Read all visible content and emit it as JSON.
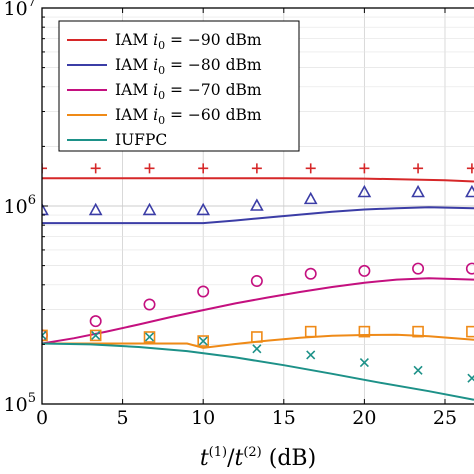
{
  "chart_data": {
    "type": "line",
    "xlabel": "t(1)/t(2) (dB)",
    "xlabel_parts": {
      "t": "t",
      "sup1": "(1)",
      "slash": "/",
      "sup2": "(2)",
      "unit": " (dB)"
    },
    "yscale": "log",
    "xlim": [
      0,
      26.8
    ],
    "ylim": [
      100000,
      10000000
    ],
    "x_ticks": [
      0,
      5,
      10,
      15,
      20,
      25
    ],
    "x_tick_labels": [
      "0",
      "5",
      "10",
      "15",
      "20",
      "25"
    ],
    "y_major_ticks": [
      100000,
      1000000,
      10000000
    ],
    "y_tick_labels": [
      {
        "base": "10",
        "exp": "5"
      },
      {
        "base": "10",
        "exp": "6"
      },
      {
        "base": "10",
        "exp": "7"
      }
    ],
    "grid": true,
    "legend_placement": "top-left",
    "series": [
      {
        "name": "IAM i0 = −90 dBm",
        "color": "#d62728",
        "marker": "plus",
        "line_x": [
          0,
          5,
          10,
          15,
          20,
          25,
          26.8
        ],
        "line_y": [
          1380000,
          1380000,
          1380000,
          1380000,
          1375000,
          1350000,
          1330000
        ],
        "marker_x": [
          0,
          3.33,
          6.67,
          10,
          13.33,
          16.67,
          20,
          23.33,
          26.67
        ],
        "marker_y": [
          1550000,
          1550000,
          1550000,
          1550000,
          1550000,
          1550000,
          1550000,
          1550000,
          1550000
        ]
      },
      {
        "name": "IAM i0 = −80 dBm",
        "color": "#3b3da6",
        "marker": "triangle",
        "line_x": [
          0,
          5,
          10,
          12,
          14,
          16,
          18,
          20,
          22,
          24,
          26.8
        ],
        "line_y": [
          820000,
          820000,
          820000,
          845000,
          875000,
          905000,
          935000,
          960000,
          975000,
          985000,
          975000
        ],
        "marker_x": [
          0,
          3.33,
          6.67,
          10,
          13.33,
          16.67,
          20,
          23.33,
          26.67
        ],
        "marker_y": [
          950000,
          950000,
          950000,
          950000,
          1000000,
          1080000,
          1170000,
          1170000,
          1170000
        ]
      },
      {
        "name": "IAM i0 = −70 dBm",
        "color": "#c4107f",
        "marker": "circle",
        "line_x": [
          0,
          2,
          4,
          6,
          8,
          10,
          12,
          14,
          16,
          18,
          20,
          22,
          24,
          26.8
        ],
        "line_y": [
          202000,
          215000,
          232000,
          252000,
          275000,
          298000,
          322000,
          345000,
          368000,
          390000,
          410000,
          425000,
          432000,
          425000
        ],
        "marker_x": [
          0,
          3.33,
          6.67,
          10,
          13.33,
          16.67,
          20,
          23.33,
          26.67
        ],
        "marker_y": [
          222000,
          262000,
          318000,
          370000,
          418000,
          455000,
          470000,
          483000,
          483000
        ]
      },
      {
        "name": "IAM i0 = −60 dBm",
        "color": "#ef8a17",
        "marker": "square",
        "line_x": [
          0,
          3,
          6,
          9,
          10,
          12,
          14,
          16,
          18,
          20,
          22,
          24,
          26.8
        ],
        "line_y": [
          202000,
          202000,
          202000,
          202000,
          192000,
          201000,
          209000,
          216000,
          221000,
          223000,
          224000,
          220000,
          211000
        ],
        "marker_x": [
          0,
          3.33,
          6.67,
          10,
          13.33,
          16.67,
          20,
          23.33,
          26.67
        ],
        "marker_y": [
          222000,
          222000,
          218000,
          208000,
          218000,
          232000,
          232000,
          232000,
          232000
        ]
      },
      {
        "name": "IUFPC",
        "color": "#1d9188",
        "marker": "x",
        "line_x": [
          0,
          3,
          6,
          9,
          12,
          15,
          18,
          21,
          24,
          26.8
        ],
        "line_y": [
          202000,
          200000,
          194000,
          185000,
          172000,
          157000,
          142000,
          128000,
          116000,
          105000
        ],
        "marker_x": [
          0,
          3.33,
          6.67,
          10,
          13.33,
          16.67,
          20,
          23.33,
          26.67
        ],
        "marker_y": [
          222000,
          222000,
          218000,
          208000,
          190000,
          177000,
          162000,
          148000,
          135000
        ]
      }
    ],
    "legend": [
      {
        "prefix": "IAM ",
        "var": "i",
        "sub": "0",
        "rest": " = −90 dBm"
      },
      {
        "prefix": "IAM ",
        "var": "i",
        "sub": "0",
        "rest": " = −80 dBm"
      },
      {
        "prefix": "IAM ",
        "var": "i",
        "sub": "0",
        "rest": " = −70 dBm"
      },
      {
        "prefix": "IAM ",
        "var": "i",
        "sub": "0",
        "rest": " = −60 dBm"
      },
      {
        "prefix": "IUFPC",
        "var": "",
        "sub": "",
        "rest": ""
      }
    ]
  }
}
